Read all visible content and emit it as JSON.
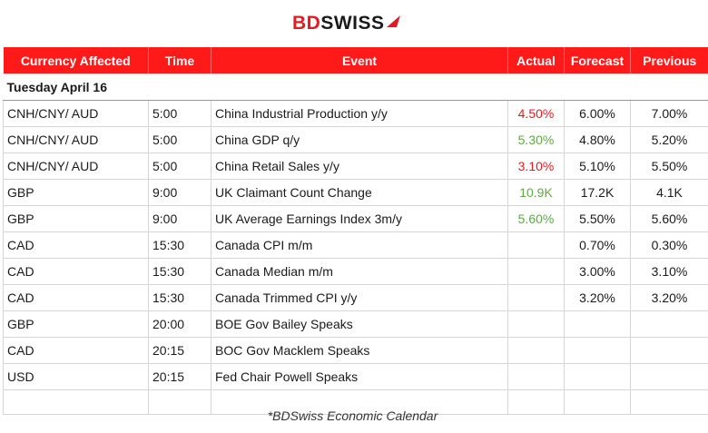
{
  "brand": {
    "part1": "BD",
    "part2": "SWISS",
    "accent": "#e31b23"
  },
  "headers": {
    "currency": "Currency Affected",
    "time": "Time",
    "event": "Event",
    "actual": "Actual",
    "forecast": "Forecast",
    "previous": "Previous"
  },
  "day_label": "Tuesday April 16",
  "rows": [
    {
      "currency": "CNH/CNY/ AUD",
      "time": "5:00",
      "event": "China Industrial Production y/y",
      "actual": "4.50%",
      "actual_status": "negative",
      "forecast": "6.00%",
      "previous": "7.00%"
    },
    {
      "currency": "CNH/CNY/ AUD",
      "time": "5:00",
      "event": "China GDP q/y",
      "actual": "5.30%",
      "actual_status": "positive",
      "forecast": "4.80%",
      "previous": "5.20%"
    },
    {
      "currency": "CNH/CNY/ AUD",
      "time": "5:00",
      "event": "China Retail Sales y/y",
      "actual": "3.10%",
      "actual_status": "negative",
      "forecast": "5.10%",
      "previous": "5.50%"
    },
    {
      "currency": "GBP",
      "time": "9:00",
      "event": "UK Claimant Count Change",
      "actual": "10.9K",
      "actual_status": "positive",
      "forecast": "17.2K",
      "previous": "4.1K"
    },
    {
      "currency": "GBP",
      "time": "9:00",
      "event": "UK Average Earnings Index 3m/y",
      "actual": "5.60%",
      "actual_status": "positive",
      "forecast": "5.50%",
      "previous": "5.60%"
    },
    {
      "currency": "CAD",
      "time": "15:30",
      "event": "Canada CPI m/m",
      "actual": "",
      "actual_status": "",
      "forecast": "0.70%",
      "previous": "0.30%"
    },
    {
      "currency": "CAD",
      "time": "15:30",
      "event": "Canada Median m/m",
      "actual": "",
      "actual_status": "",
      "forecast": "3.00%",
      "previous": "3.10%"
    },
    {
      "currency": "CAD",
      "time": "15:30",
      "event": "Canada Trimmed CPI y/y",
      "actual": "",
      "actual_status": "",
      "forecast": "3.20%",
      "previous": "3.20%"
    },
    {
      "currency": "GBP",
      "time": "20:00",
      "event": "BOE Gov Bailey Speaks",
      "actual": "",
      "actual_status": "",
      "forecast": "",
      "previous": ""
    },
    {
      "currency": "CAD",
      "time": "20:15",
      "event": "BOC Gov Macklem Speaks",
      "actual": "",
      "actual_status": "",
      "forecast": "",
      "previous": ""
    },
    {
      "currency": "USD",
      "time": "20:15",
      "event": "Fed Chair Powell Speaks",
      "actual": "",
      "actual_status": "",
      "forecast": "",
      "previous": ""
    }
  ],
  "footer": "*BDSwiss Economic Calendar",
  "colors": {
    "header_bg": "#ff1a1a",
    "negative": "#e31b23",
    "positive": "#5fa844"
  }
}
